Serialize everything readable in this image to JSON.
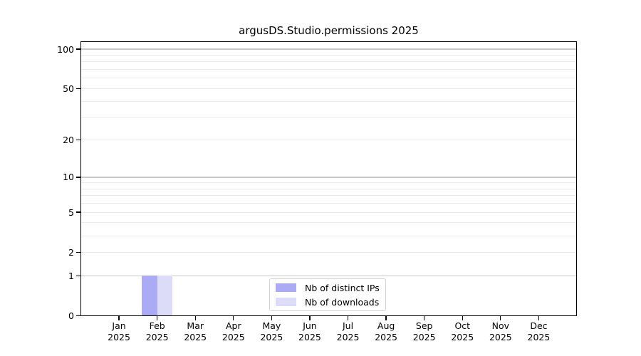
{
  "chart_data": {
    "type": "bar",
    "title": "argusDS.Studio.permissions 2025",
    "categories": [
      "Jan",
      "Feb",
      "Mar",
      "Apr",
      "May",
      "Jun",
      "Jul",
      "Aug",
      "Sep",
      "Oct",
      "Nov",
      "Dec"
    ],
    "x_year": "2025",
    "series": [
      {
        "name": "Nb of distinct IPs",
        "color": "#aaaaf5",
        "values": [
          0,
          1,
          0,
          0,
          0,
          0,
          0,
          0,
          0,
          0,
          0,
          0
        ]
      },
      {
        "name": "Nb of downloads",
        "color": "#dcdcf9",
        "values": [
          0,
          1,
          0,
          0,
          0,
          0,
          0,
          0,
          0,
          0,
          0,
          0
        ]
      }
    ],
    "y_scale": "log1p",
    "ylim": [
      0,
      100
    ],
    "y_ticks": [
      0,
      1,
      2,
      5,
      10,
      20,
      50,
      100
    ],
    "y_gridlines_major": [
      1,
      10,
      100
    ],
    "y_gridlines_minor": [
      2,
      3,
      4,
      5,
      6,
      7,
      8,
      9,
      20,
      30,
      40,
      50,
      60,
      70,
      80,
      90
    ],
    "grid": true,
    "legend_position": "lower center"
  },
  "colors": {
    "major_grid": "#c8c8c8",
    "minor_grid": "#ebebeb",
    "spine": "#000000",
    "legend_border": "#d5d5d5",
    "background": "#ffffff"
  }
}
